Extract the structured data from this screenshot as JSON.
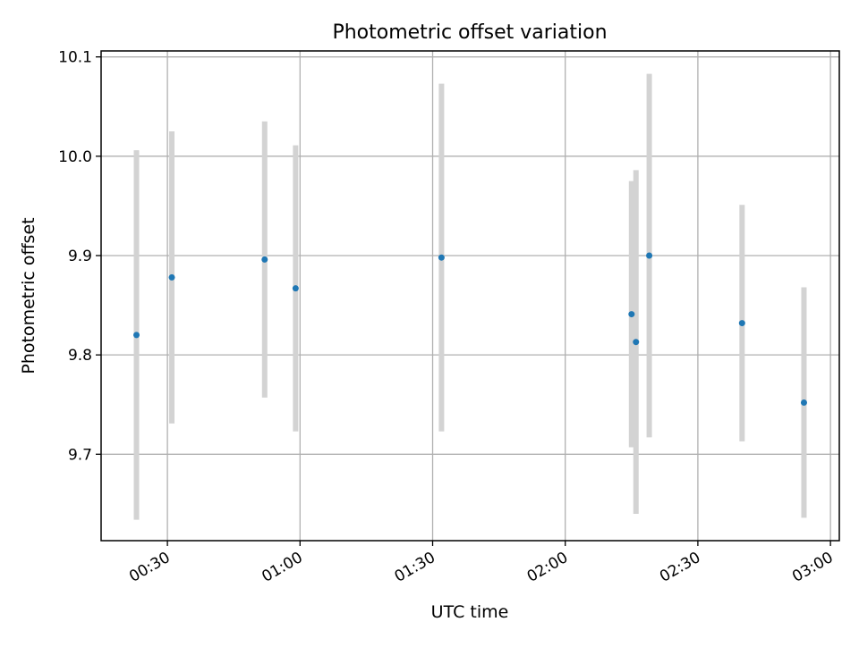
{
  "chart_data": {
    "type": "scatter",
    "title": "Photometric offset variation",
    "xlabel": "UTC time",
    "ylabel": "Photometric offset",
    "x_axis_kind": "time",
    "xlim": [
      "00:15",
      "03:02"
    ],
    "ylim": [
      9.613,
      10.106
    ],
    "grid": true,
    "xticks": [
      "00:30",
      "01:00",
      "01:30",
      "02:00",
      "02:30",
      "03:00"
    ],
    "yticks": [
      9.7,
      9.8,
      9.9,
      10.0,
      10.1
    ],
    "colors": {
      "point": "#1f77b4",
      "errorbar": "#d3d3d3",
      "grid": "#b0b0b0"
    },
    "points": [
      {
        "x": "00:23",
        "y": 9.82,
        "err": 0.186
      },
      {
        "x": "00:31",
        "y": 9.878,
        "err": 0.147
      },
      {
        "x": "00:52",
        "y": 9.896,
        "err": 0.139
      },
      {
        "x": "00:59",
        "y": 9.867,
        "err": 0.144
      },
      {
        "x": "01:32",
        "y": 9.898,
        "err": 0.175
      },
      {
        "x": "02:15",
        "y": 9.841,
        "err": 0.134
      },
      {
        "x": "02:16",
        "y": 9.813,
        "err": 0.173
      },
      {
        "x": "02:19",
        "y": 9.9,
        "err": 0.183
      },
      {
        "x": "02:40",
        "y": 9.832,
        "err": 0.119
      },
      {
        "x": "02:54",
        "y": 9.752,
        "err": 0.116
      }
    ]
  }
}
